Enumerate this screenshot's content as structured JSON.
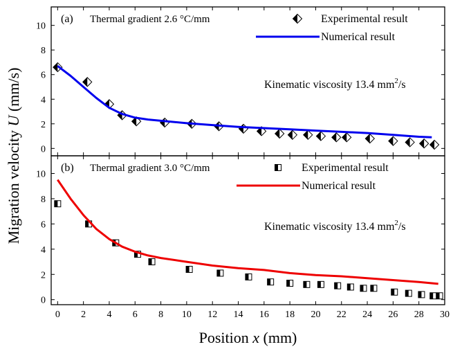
{
  "chart_data": [
    {
      "type": "scatter",
      "panel": "(a)",
      "title": "Thermal gradient 2.6 °C/mm",
      "annotation": "Kinematic viscosity 13.4 mm²/s",
      "xlabel": "Position x (mm)",
      "ylabel": "Migration velocity U (mm/s)",
      "xlim": [
        -0.5,
        30
      ],
      "ylim": [
        -0.6,
        11.5
      ],
      "yticks": [
        0,
        2,
        4,
        6,
        8,
        10
      ],
      "legend_position": "top-right",
      "series": [
        {
          "name": "Experimental result",
          "kind": "points",
          "marker": "half-filled-diamond",
          "color": "#000000",
          "x": [
            0,
            2.3,
            4.0,
            5.0,
            6.1,
            8.3,
            10.4,
            12.5,
            14.4,
            15.8,
            17.2,
            18.2,
            19.4,
            20.4,
            21.6,
            22.4,
            24.2,
            26.0,
            27.3,
            28.4,
            29.2
          ],
          "y": [
            6.6,
            5.4,
            3.6,
            2.7,
            2.2,
            2.1,
            2.0,
            1.8,
            1.6,
            1.4,
            1.2,
            1.1,
            1.1,
            1.0,
            0.9,
            0.9,
            0.8,
            0.6,
            0.5,
            0.4,
            0.3
          ]
        },
        {
          "name": "Numerical result",
          "kind": "line",
          "color": "#0000ee",
          "x": [
            0,
            1,
            2,
            3,
            4,
            5,
            6,
            7,
            8,
            10,
            12,
            14,
            16,
            18,
            20,
            22,
            24,
            26,
            28,
            29
          ],
          "y": [
            6.7,
            5.9,
            5.0,
            4.1,
            3.3,
            2.8,
            2.5,
            2.35,
            2.25,
            2.05,
            1.9,
            1.75,
            1.65,
            1.55,
            1.45,
            1.35,
            1.25,
            1.1,
            0.95,
            0.9
          ]
        }
      ]
    },
    {
      "type": "scatter",
      "panel": "(b)",
      "title": "Thermal gradient 3.0 °C/mm",
      "annotation": "Kinematic viscosity 13.4 mm²/s",
      "xlabel": "Position x (mm)",
      "ylabel": "Migration velocity U (mm/s)",
      "xlim": [
        -0.5,
        30
      ],
      "xticks": [
        0,
        2,
        4,
        6,
        8,
        10,
        12,
        14,
        16,
        18,
        20,
        22,
        24,
        26,
        28,
        30
      ],
      "ylim": [
        -0.4,
        11.4
      ],
      "yticks": [
        0,
        2,
        4,
        6,
        8,
        10
      ],
      "legend_position": "top-right",
      "series": [
        {
          "name": "Experimental result",
          "kind": "points",
          "marker": "half-filled-square",
          "color": "#000000",
          "x": [
            0,
            2.4,
            4.5,
            6.2,
            7.3,
            10.2,
            12.6,
            14.8,
            16.5,
            18.0,
            19.3,
            20.4,
            21.7,
            22.7,
            23.7,
            24.5,
            26.1,
            27.2,
            28.2,
            29.1,
            29.6
          ],
          "y": [
            7.6,
            6.0,
            4.5,
            3.6,
            3.0,
            2.4,
            2.1,
            1.8,
            1.4,
            1.3,
            1.2,
            1.2,
            1.1,
            1.0,
            0.9,
            0.9,
            0.6,
            0.5,
            0.4,
            0.3,
            0.3
          ]
        },
        {
          "name": "Numerical result",
          "kind": "line",
          "color": "#ee0000",
          "x": [
            0,
            1,
            2,
            3,
            4,
            5,
            6,
            7,
            8,
            10,
            12,
            14,
            16,
            18,
            20,
            22,
            24,
            26,
            28,
            29.5
          ],
          "y": [
            9.5,
            8.0,
            6.7,
            5.6,
            4.8,
            4.2,
            3.8,
            3.5,
            3.3,
            3.0,
            2.7,
            2.5,
            2.35,
            2.1,
            1.95,
            1.85,
            1.7,
            1.55,
            1.4,
            1.25
          ]
        }
      ]
    }
  ]
}
